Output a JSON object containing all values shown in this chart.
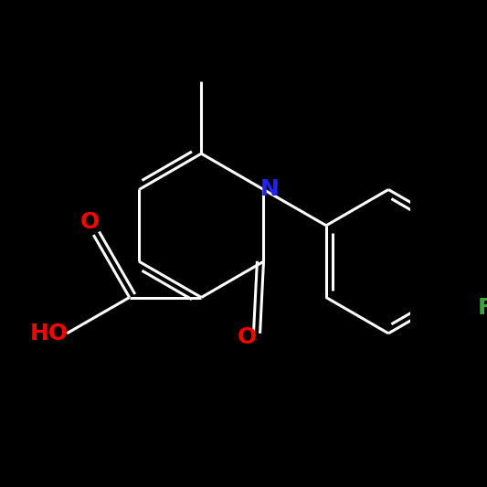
{
  "background_color": "#000000",
  "atom_colors": {
    "N": "#2222ff",
    "O": "#ff0000",
    "F": "#33aa33",
    "bond": "#ffffff"
  },
  "bond_lw": 2.2,
  "font_size": 18
}
